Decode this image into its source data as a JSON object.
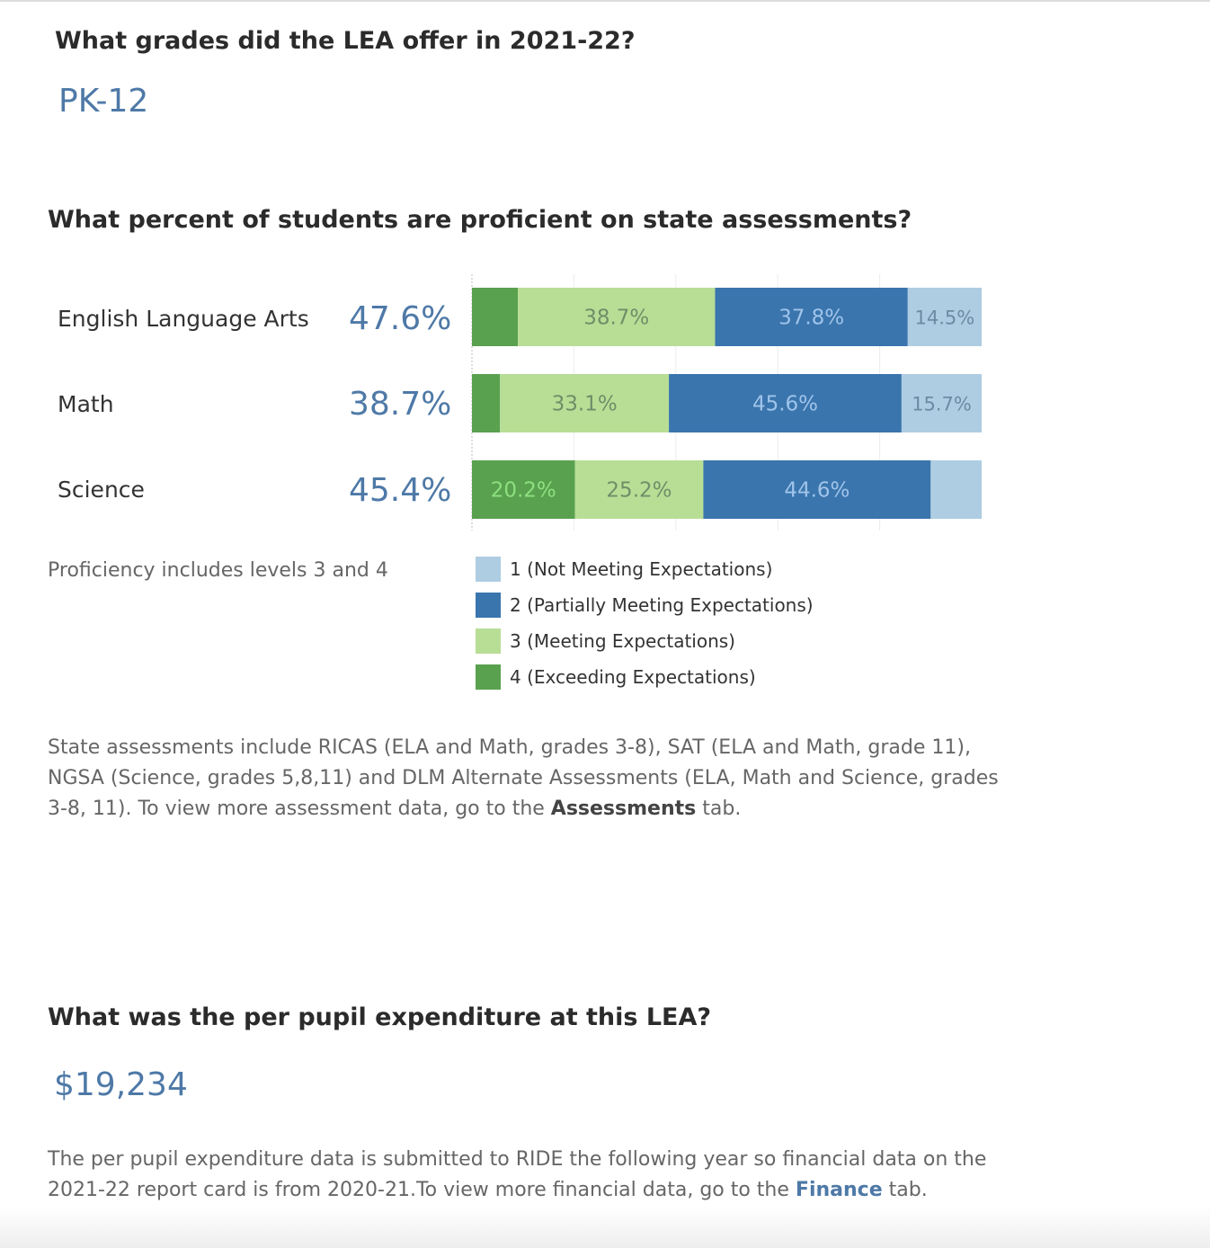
{
  "grades": {
    "question": "What grades did the LEA offer in 2021-22?",
    "value": "PK-12"
  },
  "proficiency": {
    "question": "What percent of students are proficient on state assessments?",
    "subjects": [
      {
        "name": "English Language Arts",
        "percent": "47.6%"
      },
      {
        "name": "Math",
        "percent": "38.7%"
      },
      {
        "name": "Science",
        "percent": "45.4%"
      }
    ],
    "note": "Proficiency includes levels 3 and 4"
  },
  "chart_data": {
    "type": "bar",
    "orientation": "horizontal-stacked",
    "categories": [
      "English Language Arts",
      "Math",
      "Science"
    ],
    "series": [
      {
        "name": "4 (Exceeding Expectations)",
        "color": "#59a14f",
        "label_color": "#8ee07f",
        "values": [
          9.0,
          5.5,
          20.2
        ],
        "labels": [
          "",
          "",
          "20.2%"
        ]
      },
      {
        "name": "3 (Meeting Expectations)",
        "color": "#b8de96",
        "label_color": "#6e8f68",
        "values": [
          38.7,
          33.1,
          25.2
        ],
        "labels": [
          "38.7%",
          "33.1%",
          "25.2%"
        ]
      },
      {
        "name": "2 (Partially Meeting Expectations)",
        "color": "#3a75ad",
        "label_color": "#a0c4ea",
        "values": [
          37.8,
          45.6,
          44.6
        ],
        "labels": [
          "37.8%",
          "45.6%",
          "44.6%"
        ]
      },
      {
        "name": "1 (Not Meeting Expectations)",
        "color": "#aecde2",
        "label_color": "#6d8aa3",
        "values": [
          14.5,
          15.7,
          10.0
        ],
        "labels": [
          "14.5%",
          "15.7%",
          ""
        ]
      }
    ],
    "legend_order": [
      3,
      2,
      1,
      0
    ],
    "xlim": [
      0,
      100
    ],
    "grid": true,
    "legend_position": "bottom"
  },
  "assessments_note": {
    "text": "State assessments include RICAS (ELA and Math, grades 3-8), SAT (ELA and Math, grade 11), NGSA (Science, grades 5,8,11) and DLM Alternate Assessments (ELA, Math and Science, grades 3-8, 11). To view more assessment data, go to the ",
    "link": "Assessments",
    "suffix": " tab."
  },
  "expenditure": {
    "question": "What was the per pupil expenditure at this LEA?",
    "value": "$19,234",
    "note": "The per pupil expenditure data is submitted to RIDE the following year so financial data on the 2021-22 report card is from 2020-21.To view more financial data, go to the ",
    "link": "Finance",
    "suffix": " tab."
  }
}
